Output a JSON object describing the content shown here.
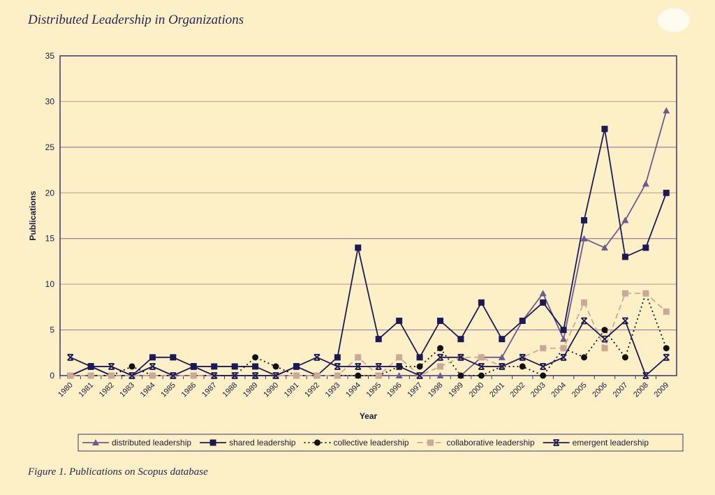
{
  "page": {
    "title": "Distributed Leadership in Organizations",
    "caption": "Figure 1.  Publications on Scopus database"
  },
  "chart_data": {
    "type": "line",
    "xlabel": "Year",
    "ylabel": "Publications",
    "ylim": [
      0,
      35
    ],
    "yticks": [
      0,
      5,
      10,
      15,
      20,
      25,
      30,
      35
    ],
    "grid": "horizontal",
    "legend": "bottom",
    "categories": [
      "1980",
      "1981",
      "1982",
      "1983",
      "1984",
      "1985",
      "1986",
      "1987",
      "1988",
      "1989",
      "1990",
      "1991",
      "1992",
      "1993",
      "1994",
      "1995",
      "1996",
      "1997",
      "1998",
      "1999",
      "2000",
      "2001",
      "2002",
      "2003",
      "2004",
      "2005",
      "2006",
      "2007",
      "2008",
      "2009"
    ],
    "series": [
      {
        "name": "distributed leadership",
        "color": "#6e5a92",
        "marker": "triangle",
        "dash": "",
        "values": [
          0,
          1,
          0,
          0,
          0,
          0,
          0,
          0,
          0,
          0,
          0,
          0,
          0,
          0,
          0,
          0,
          0,
          0,
          0,
          0,
          2,
          2,
          6,
          9,
          4,
          15,
          14,
          17,
          21,
          29
        ]
      },
      {
        "name": "shared leadership",
        "color": "#1c1a55",
        "marker": "square",
        "dash": "",
        "values": [
          0,
          1,
          0,
          0,
          2,
          2,
          1,
          1,
          1,
          1,
          0,
          1,
          0,
          2,
          14,
          4,
          6,
          2,
          6,
          4,
          8,
          4,
          6,
          8,
          5,
          17,
          27,
          13,
          14,
          20
        ]
      },
      {
        "name": "collective leadership",
        "color": "#111",
        "marker": "circle",
        "dash": "2,4",
        "values": [
          0,
          0,
          0,
          1,
          0,
          0,
          0,
          0,
          0,
          2,
          1,
          0,
          0,
          0,
          0,
          0,
          1,
          1,
          3,
          0,
          0,
          1,
          1,
          0,
          3,
          2,
          5,
          2,
          9,
          3
        ]
      },
      {
        "name": "collaborative leadership",
        "color": "#c9aa98",
        "marker": "square",
        "dash": "8,5",
        "values": [
          0,
          0,
          0,
          0,
          0,
          0,
          0,
          0,
          0,
          0,
          0,
          0,
          0,
          0,
          2,
          0,
          2,
          0,
          1,
          2,
          2,
          1,
          2,
          3,
          3,
          8,
          3,
          9,
          9,
          7
        ]
      },
      {
        "name": "emergent leadership",
        "color": "#1c1a55",
        "marker": "x",
        "dash": "",
        "values": [
          2,
          1,
          1,
          0,
          1,
          0,
          1,
          0,
          0,
          0,
          0,
          1,
          2,
          1,
          1,
          1,
          1,
          0,
          2,
          2,
          1,
          1,
          2,
          1,
          2,
          6,
          4,
          6,
          0,
          2
        ]
      }
    ]
  }
}
